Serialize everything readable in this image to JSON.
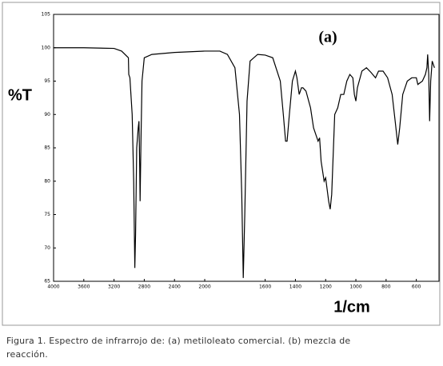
{
  "chart_data": {
    "type": "line",
    "title": "(a)",
    "y_label": "%T",
    "x_label": "1/cm",
    "x": [
      4000,
      3600,
      3200,
      3100,
      3010,
      3005,
      2990,
      2960,
      2940,
      2925,
      2915,
      2900,
      2880,
      2870,
      2860,
      2855,
      2845,
      2830,
      2800,
      2700,
      2400,
      2000,
      1900,
      1850,
      1800,
      1770,
      1755,
      1745,
      1735,
      1720,
      1700,
      1650,
      1600,
      1550,
      1500,
      1480,
      1465,
      1455,
      1440,
      1420,
      1400,
      1390,
      1375,
      1360,
      1350,
      1330,
      1300,
      1280,
      1250,
      1240,
      1230,
      1210,
      1200,
      1180,
      1170,
      1160,
      1140,
      1120,
      1100,
      1080,
      1060,
      1040,
      1020,
      1010,
      1000,
      990,
      960,
      930,
      900,
      870,
      850,
      820,
      790,
      760,
      740,
      723,
      710,
      690,
      660,
      630,
      600,
      590,
      560,
      540,
      530,
      525,
      518,
      512,
      505,
      495,
      480
    ],
    "series": [
      {
        "color": "#000000",
        "values": [
          100,
          100,
          99.9,
          99.5,
          98.5,
          96,
          95.5,
          90,
          80,
          67,
          72,
          85,
          88,
          89,
          82,
          77,
          85,
          95,
          98.5,
          99,
          99.3,
          99.5,
          99.5,
          99,
          97,
          90,
          78,
          65.5,
          75,
          92,
          98,
          99,
          98.9,
          98.5,
          95,
          90,
          86,
          86,
          90,
          95,
          96.5,
          95.5,
          93,
          94,
          94,
          93.5,
          91,
          88,
          86,
          86.5,
          83,
          80,
          80.5,
          77,
          75.8,
          78,
          90,
          91,
          93,
          93,
          95,
          96,
          95.5,
          93,
          92,
          94,
          96.5,
          97,
          96.3,
          95.5,
          96.5,
          96.5,
          95.5,
          93,
          89,
          85.5,
          88,
          93,
          95,
          95.5,
          95.5,
          94.5,
          95,
          96,
          97,
          99,
          96,
          89,
          95,
          98,
          97
        ]
      }
    ],
    "xlim": [
      4000,
      450
    ],
    "x_scale_change_at": 2000,
    "x_expansion": 2,
    "xticks": [
      4000,
      3600,
      3200,
      2800,
      2400,
      2000,
      1600,
      1400,
      1200,
      1000,
      800,
      600
    ],
    "ylim": [
      65,
      105
    ],
    "yticks": [
      65,
      70,
      75,
      80,
      85,
      90,
      95,
      100,
      105
    ]
  },
  "caption": [
    "Figura 1. Espectro de infrarrojo de: (a) metiloleato comercial. (b) mezcla de",
    "reacción."
  ]
}
